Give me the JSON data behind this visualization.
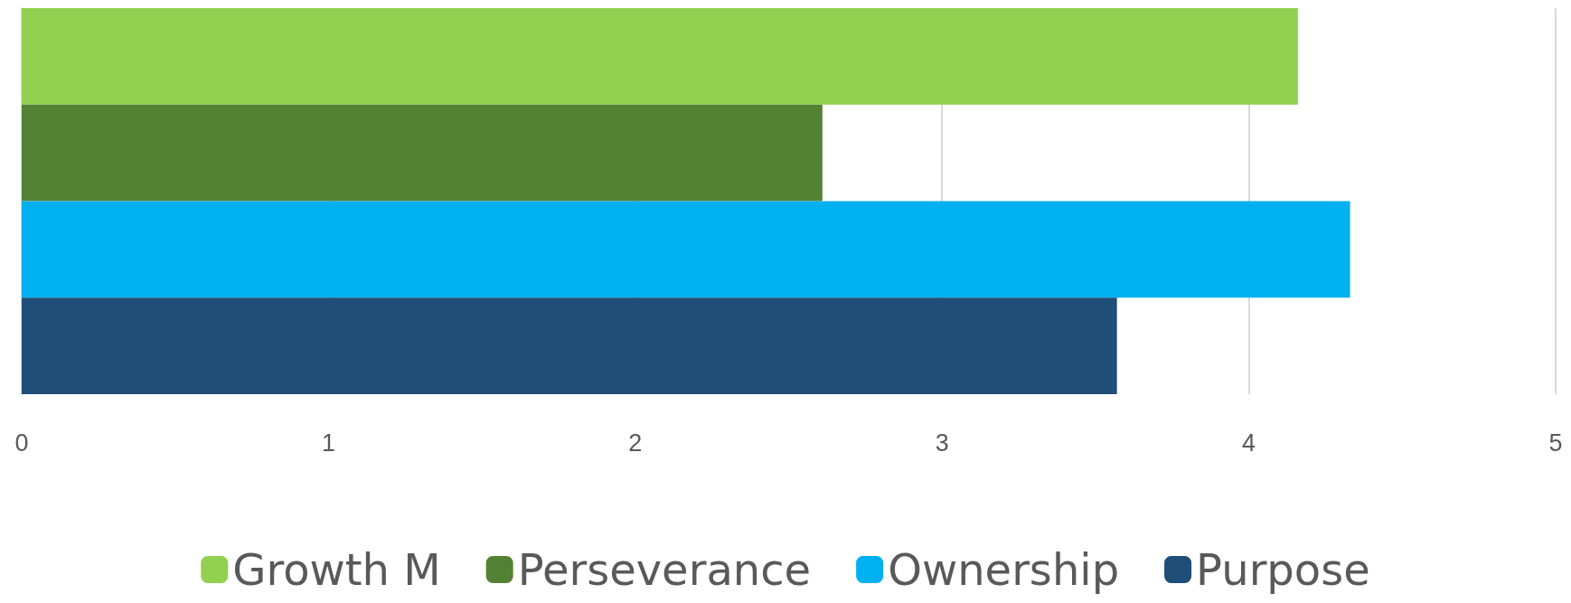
{
  "chart_data": {
    "type": "bar",
    "orientation": "horizontal",
    "categories": [
      null
    ],
    "series": [
      {
        "name": "Growth M",
        "color": "#92d050",
        "values": [
          4.16
        ]
      },
      {
        "name": "Perseverance",
        "color": "#548235",
        "values": [
          2.61
        ]
      },
      {
        "name": "Ownership",
        "color": "#00b0f0",
        "values": [
          4.33
        ]
      },
      {
        "name": "Purpose",
        "color": "#1f4e79",
        "values": [
          3.57
        ]
      }
    ],
    "xlim": [
      0,
      5
    ],
    "xticks": [
      0,
      1,
      2,
      3,
      4,
      5
    ],
    "grid": "x",
    "legend": "bottom",
    "tick_labels": "x"
  }
}
